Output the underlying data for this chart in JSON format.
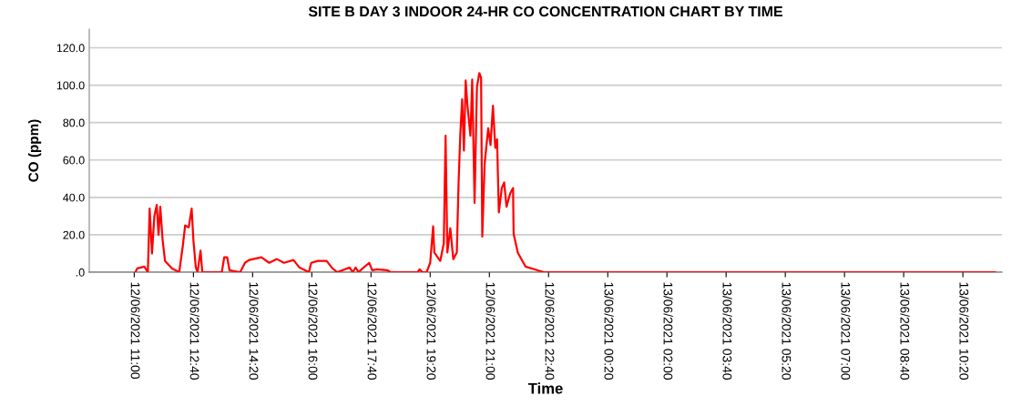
{
  "chart_data": {
    "type": "line",
    "title": "SITE B DAY 3 INDOOR 24-HR CO CONCENTRATION CHART BY TIME",
    "xlabel": "Time",
    "ylabel": "CO (ppm)",
    "series": [
      {
        "color": "#ff0000",
        "x": [
          "2021-06-12T11:02",
          "2021-06-12T11:05",
          "2021-06-12T11:17",
          "2021-06-12T11:23",
          "2021-06-12T11:26",
          "2021-06-12T11:30",
          "2021-06-12T11:34",
          "2021-06-12T11:38",
          "2021-06-12T11:41",
          "2021-06-12T11:44",
          "2021-06-12T11:48",
          "2021-06-12T11:52",
          "2021-06-12T12:04",
          "2021-06-12T12:16",
          "2021-06-12T12:22",
          "2021-06-12T12:26",
          "2021-06-12T12:32",
          "2021-06-12T12:37",
          "2021-06-12T12:40",
          "2021-06-12T12:44",
          "2021-06-12T12:47",
          "2021-06-12T12:52",
          "2021-06-12T12:55",
          "2021-06-12T13:28",
          "2021-06-12T13:32",
          "2021-06-12T13:37",
          "2021-06-12T13:41",
          "2021-06-12T13:59",
          "2021-06-12T14:07",
          "2021-06-12T14:14",
          "2021-06-12T14:35",
          "2021-06-12T14:48",
          "2021-06-12T15:01",
          "2021-06-12T15:13",
          "2021-06-12T15:29",
          "2021-06-12T15:39",
          "2021-06-12T15:49",
          "2021-06-12T15:55",
          "2021-06-12T15:59",
          "2021-06-12T16:10",
          "2021-06-12T16:25",
          "2021-06-12T16:35",
          "2021-06-12T16:43",
          "2021-06-12T17:04",
          "2021-06-12T17:09",
          "2021-06-12T17:14",
          "2021-06-12T17:19",
          "2021-06-12T17:24",
          "2021-06-12T17:37",
          "2021-06-12T17:42",
          "2021-06-12T17:50",
          "2021-06-12T18:08",
          "2021-06-12T18:13",
          "2021-06-12T18:59",
          "2021-06-12T19:02",
          "2021-06-12T19:07",
          "2021-06-12T19:14",
          "2021-06-12T19:20",
          "2021-06-12T19:25",
          "2021-06-12T19:27",
          "2021-06-12T19:37",
          "2021-06-12T19:43",
          "2021-06-12T19:46",
          "2021-06-12T19:49",
          "2021-06-12T19:54",
          "2021-06-12T19:59",
          "2021-06-12T20:05",
          "2021-06-12T20:08",
          "2021-06-12T20:11",
          "2021-06-12T20:14",
          "2021-06-12T20:17",
          "2021-06-12T20:20",
          "2021-06-12T20:23",
          "2021-06-12T20:28",
          "2021-06-12T20:31",
          "2021-06-12T20:35",
          "2021-06-12T20:39",
          "2021-06-12T20:43",
          "2021-06-12T20:46",
          "2021-06-12T20:48",
          "2021-06-12T20:52",
          "2021-06-12T20:58",
          "2021-06-12T21:02",
          "2021-06-12T21:06",
          "2021-06-12T21:10",
          "2021-06-12T21:13",
          "2021-06-12T21:16",
          "2021-06-12T21:21",
          "2021-06-12T21:25",
          "2021-06-12T21:29",
          "2021-06-12T21:35",
          "2021-06-12T21:40",
          "2021-06-12T21:41",
          "2021-06-12T21:48",
          "2021-06-12T22:01",
          "2021-06-12T22:22",
          "2021-06-12T22:32",
          "2021-06-13T11:14"
        ],
        "values": [
          0,
          2,
          3,
          0,
          34,
          10,
          30,
          36,
          20,
          35,
          17,
          6,
          2,
          0,
          14,
          25,
          24,
          34,
          17,
          2.5,
          0,
          11.5,
          0,
          0,
          8,
          8,
          1,
          0,
          5,
          6.5,
          8,
          5,
          7,
          5,
          6.5,
          2.5,
          1,
          0,
          5,
          6,
          6,
          2,
          0,
          2.5,
          0,
          2.5,
          0,
          1.5,
          5,
          1,
          1.5,
          1,
          0,
          0,
          1.5,
          0,
          0,
          5,
          24.5,
          10.5,
          6,
          15.5,
          73,
          10.5,
          23.5,
          7,
          10.5,
          48,
          74.5,
          92.5,
          65,
          102.5,
          89,
          73,
          103,
          37,
          99,
          106.5,
          104,
          19,
          58,
          77,
          68,
          89,
          66.5,
          71,
          32,
          45,
          48,
          35,
          42,
          45,
          20.5,
          10.5,
          3,
          1,
          0,
          0
        ]
      }
    ],
    "xlim": [
      "2021-06-12T09:44",
      "2021-06-13T11:26"
    ],
    "xticks": [
      {
        "value": "2021-06-12T11:00",
        "label": "12/06/2021 11:00"
      },
      {
        "value": "2021-06-12T12:40",
        "label": "12/06/2021 12:40"
      },
      {
        "value": "2021-06-12T14:20",
        "label": "12/06/2021 14:20"
      },
      {
        "value": "2021-06-12T16:00",
        "label": "12/06/2021 16:00"
      },
      {
        "value": "2021-06-12T17:40",
        "label": "12/06/2021 17:40"
      },
      {
        "value": "2021-06-12T19:20",
        "label": "12/06/2021 19:20"
      },
      {
        "value": "2021-06-12T21:00",
        "label": "12/06/2021 21:00"
      },
      {
        "value": "2021-06-12T22:40",
        "label": "12/06/2021 22:40"
      },
      {
        "value": "2021-06-13T00:20",
        "label": "13/06/2021 00:20"
      },
      {
        "value": "2021-06-13T02:00",
        "label": "13/06/2021 02:00"
      },
      {
        "value": "2021-06-13T03:40",
        "label": "13/06/2021 03:40"
      },
      {
        "value": "2021-06-13T05:20",
        "label": "13/06/2021 05:20"
      },
      {
        "value": "2021-06-13T07:00",
        "label": "13/06/2021 07:00"
      },
      {
        "value": "2021-06-13T08:40",
        "label": "13/06/2021 08:40"
      },
      {
        "value": "2021-06-13T10:20",
        "label": "13/06/2021 10:20"
      }
    ],
    "ylim": [
      0,
      130
    ],
    "yticks": [
      {
        "value": 0,
        "label": ".0"
      },
      {
        "value": 20,
        "label": "20.0"
      },
      {
        "value": 40,
        "label": "40.0"
      },
      {
        "value": 60,
        "label": "60.0"
      },
      {
        "value": 80,
        "label": "80.0"
      },
      {
        "value": 100,
        "label": "100.0"
      },
      {
        "value": 120,
        "label": "120.0"
      }
    ],
    "grid": "y",
    "marker": "none",
    "line_style": "solid"
  }
}
